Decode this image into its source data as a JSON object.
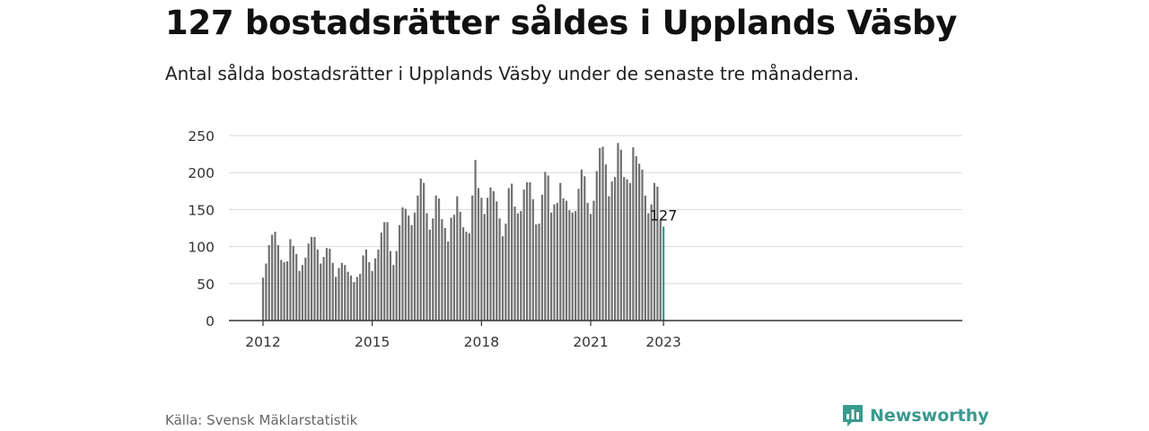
{
  "title": "127 bostadsrätter såldes i Upplands Väsby",
  "subtitle": "Antal sålda bostadsrätter i Upplands Väsby under de senaste tre månaderna.",
  "source": "Källa: Svensk Mäklarstatistik",
  "brand": "Newsworthy",
  "colors": {
    "bar": "#707070",
    "highlight": "#2a9d8f",
    "grid": "#d9d9d9",
    "axis": "#333333",
    "brand": "#3a9a8e"
  },
  "chart_data": {
    "type": "bar",
    "x_start": "2012-01",
    "x_ticks": [
      "2012",
      "2015",
      "2018",
      "2021",
      "2023"
    ],
    "y_ticks": [
      0,
      50,
      100,
      150,
      200,
      250
    ],
    "ylim": [
      0,
      250
    ],
    "grid": true,
    "highlight_label": "127",
    "values": [
      58,
      77,
      102,
      116,
      120,
      102,
      82,
      79,
      80,
      110,
      101,
      90,
      67,
      75,
      85,
      104,
      113,
      113,
      96,
      77,
      86,
      98,
      97,
      78,
      59,
      71,
      78,
      75,
      66,
      61,
      52,
      59,
      63,
      88,
      96,
      79,
      67,
      84,
      96,
      119,
      133,
      133,
      94,
      75,
      94,
      129,
      153,
      151,
      142,
      129,
      146,
      169,
      192,
      186,
      145,
      123,
      138,
      169,
      165,
      137,
      125,
      107,
      139,
      143,
      168,
      147,
      126,
      120,
      118,
      169,
      217,
      179,
      166,
      144,
      166,
      180,
      175,
      161,
      138,
      114,
      131,
      179,
      185,
      154,
      145,
      148,
      177,
      187,
      187,
      164,
      130,
      131,
      170,
      201,
      196,
      146,
      157,
      159,
      186,
      165,
      162,
      149,
      146,
      148,
      178,
      204,
      195,
      159,
      144,
      162,
      202,
      233,
      235,
      211,
      168,
      188,
      194,
      240,
      231,
      194,
      191,
      186,
      234,
      222,
      212,
      204,
      169,
      145,
      157,
      186,
      181,
      136,
      127
    ]
  }
}
